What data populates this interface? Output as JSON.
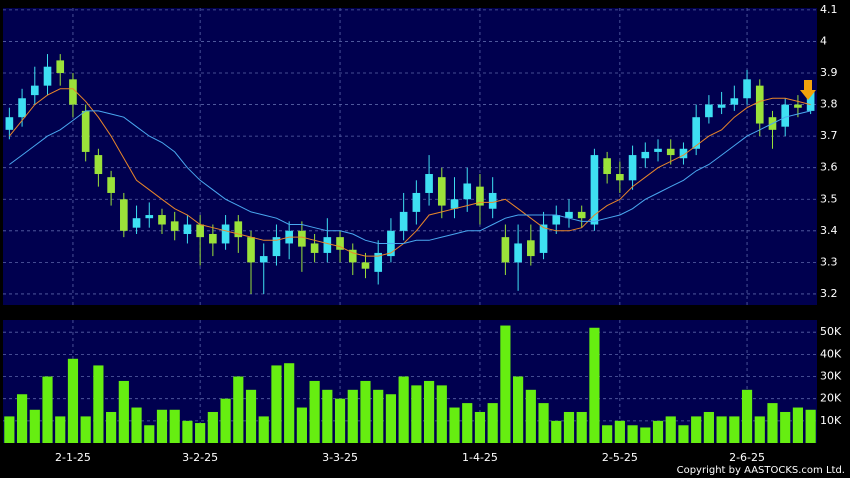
{
  "chart_data": [
    {
      "type": "candlestick",
      "up_color": "#3ee0f2",
      "down_color": "#9be23a",
      "ylim": [
        3.165,
        4.106
      ],
      "yticks": [
        3.2,
        3.3,
        3.4,
        3.5,
        3.6,
        3.7,
        3.8,
        3.9,
        4,
        4.1
      ],
      "grid": true,
      "open": [
        3.72,
        3.76,
        3.83,
        3.86,
        3.94,
        3.88,
        3.78,
        3.64,
        3.57,
        3.5,
        3.41,
        3.44,
        3.45,
        3.43,
        3.39,
        3.42,
        3.39,
        3.36,
        3.43,
        3.38,
        3.3,
        3.32,
        3.36,
        3.4,
        3.36,
        3.33,
        3.38,
        3.34,
        3.3,
        3.27,
        3.32,
        3.4,
        3.46,
        3.52,
        3.57,
        3.47,
        3.5,
        3.54,
        3.47,
        3.38,
        3.3,
        3.37,
        3.33,
        3.42,
        3.44,
        3.46,
        3.42,
        3.63,
        3.58,
        3.56,
        3.63,
        3.65,
        3.66,
        3.63,
        3.66,
        3.76,
        3.79,
        3.8,
        3.82,
        3.86,
        3.76,
        3.73,
        3.8,
        3.78
      ],
      "high": [
        3.79,
        3.85,
        3.92,
        3.96,
        3.96,
        3.9,
        3.8,
        3.66,
        3.59,
        3.52,
        3.48,
        3.49,
        3.47,
        3.46,
        3.45,
        3.45,
        3.42,
        3.45,
        3.45,
        3.4,
        3.36,
        3.42,
        3.43,
        3.43,
        3.39,
        3.44,
        3.4,
        3.36,
        3.33,
        3.37,
        3.44,
        3.52,
        3.56,
        3.64,
        3.6,
        3.57,
        3.6,
        3.58,
        3.57,
        3.42,
        3.42,
        3.42,
        3.46,
        3.48,
        3.5,
        3.48,
        3.66,
        3.65,
        3.62,
        3.67,
        3.68,
        3.69,
        3.69,
        3.68,
        3.8,
        3.83,
        3.84,
        3.86,
        3.91,
        3.88,
        3.78,
        3.82,
        3.83,
        3.87
      ],
      "low": [
        3.69,
        3.73,
        3.8,
        3.83,
        3.86,
        3.76,
        3.62,
        3.54,
        3.48,
        3.38,
        3.39,
        3.41,
        3.39,
        3.37,
        3.36,
        3.29,
        3.32,
        3.34,
        3.33,
        3.2,
        3.2,
        3.29,
        3.31,
        3.27,
        3.3,
        3.3,
        3.3,
        3.26,
        3.25,
        3.23,
        3.3,
        3.37,
        3.42,
        3.48,
        3.44,
        3.44,
        3.46,
        3.42,
        3.44,
        3.26,
        3.21,
        3.29,
        3.31,
        3.39,
        3.41,
        3.41,
        3.4,
        3.55,
        3.52,
        3.53,
        3.6,
        3.62,
        3.61,
        3.61,
        3.64,
        3.74,
        3.77,
        3.78,
        3.8,
        3.7,
        3.66,
        3.7,
        3.76,
        3.77
      ],
      "close": [
        3.76,
        3.82,
        3.86,
        3.92,
        3.9,
        3.8,
        3.65,
        3.58,
        3.52,
        3.4,
        3.44,
        3.45,
        3.42,
        3.4,
        3.42,
        3.38,
        3.36,
        3.42,
        3.38,
        3.3,
        3.32,
        3.38,
        3.4,
        3.35,
        3.33,
        3.38,
        3.34,
        3.3,
        3.28,
        3.33,
        3.4,
        3.46,
        3.52,
        3.58,
        3.48,
        3.5,
        3.55,
        3.48,
        3.52,
        3.3,
        3.36,
        3.32,
        3.42,
        3.45,
        3.46,
        3.44,
        3.64,
        3.58,
        3.56,
        3.64,
        3.65,
        3.66,
        3.64,
        3.66,
        3.76,
        3.8,
        3.8,
        3.82,
        3.88,
        3.74,
        3.72,
        3.8,
        3.79,
        3.84
      ],
      "lines": [
        {
          "color": "#e8862a",
          "values": [
            3.7,
            3.75,
            3.8,
            3.83,
            3.85,
            3.85,
            3.81,
            3.76,
            3.7,
            3.63,
            3.56,
            3.53,
            3.5,
            3.47,
            3.45,
            3.42,
            3.41,
            3.4,
            3.39,
            3.38,
            3.37,
            3.37,
            3.38,
            3.38,
            3.37,
            3.36,
            3.35,
            3.33,
            3.32,
            3.32,
            3.33,
            3.36,
            3.4,
            3.45,
            3.46,
            3.47,
            3.48,
            3.49,
            3.49,
            3.5,
            3.47,
            3.44,
            3.41,
            3.4,
            3.4,
            3.41,
            3.45,
            3.48,
            3.5,
            3.54,
            3.57,
            3.6,
            3.62,
            3.64,
            3.67,
            3.7,
            3.72,
            3.76,
            3.79,
            3.81,
            3.82,
            3.82,
            3.81,
            3.8
          ]
        },
        {
          "color": "#4aa8f0",
          "values": [
            3.61,
            3.64,
            3.67,
            3.7,
            3.72,
            3.75,
            3.78,
            3.78,
            3.77,
            3.76,
            3.73,
            3.7,
            3.68,
            3.65,
            3.6,
            3.56,
            3.53,
            3.5,
            3.48,
            3.46,
            3.45,
            3.44,
            3.42,
            3.42,
            3.41,
            3.4,
            3.4,
            3.39,
            3.37,
            3.36,
            3.36,
            3.36,
            3.37,
            3.37,
            3.38,
            3.39,
            3.4,
            3.4,
            3.42,
            3.44,
            3.45,
            3.45,
            3.45,
            3.45,
            3.44,
            3.43,
            3.43,
            3.44,
            3.45,
            3.47,
            3.5,
            3.52,
            3.54,
            3.56,
            3.59,
            3.61,
            3.64,
            3.67,
            3.7,
            3.72,
            3.74,
            3.76,
            3.77,
            3.78
          ]
        }
      ]
    },
    {
      "type": "bar",
      "color": "#66ee11",
      "ylim": [
        0,
        55500
      ],
      "yticks": [
        {
          "value": 10000,
          "label": "10K"
        },
        {
          "value": 20000,
          "label": "20K"
        },
        {
          "value": 30000,
          "label": "30K"
        },
        {
          "value": 40000,
          "label": "40K"
        },
        {
          "value": 50000,
          "label": "50K"
        }
      ],
      "grid": true,
      "categories": [
        null,
        null,
        null,
        null,
        null,
        "2-1-25",
        null,
        null,
        null,
        null,
        null,
        null,
        null,
        null,
        null,
        "3-2-25",
        null,
        null,
        null,
        null,
        null,
        null,
        null,
        null,
        null,
        null,
        "3-3-25",
        null,
        null,
        null,
        null,
        null,
        null,
        null,
        null,
        null,
        null,
        "1-4-25",
        null,
        null,
        null,
        null,
        null,
        null,
        null,
        null,
        null,
        null,
        "2-5-25",
        null,
        null,
        null,
        null,
        null,
        null,
        null,
        null,
        null,
        "2-6-25",
        null,
        null,
        null,
        null,
        null
      ],
      "values": [
        12000,
        22000,
        15000,
        30000,
        12000,
        38000,
        12000,
        35000,
        14000,
        28000,
        16000,
        8000,
        15000,
        15000,
        10000,
        9000,
        14000,
        20000,
        30000,
        24000,
        12000,
        35000,
        36000,
        16000,
        28000,
        24000,
        20000,
        24000,
        28000,
        24000,
        22000,
        30000,
        26000,
        28000,
        26000,
        16000,
        18000,
        14000,
        18000,
        53000,
        30000,
        24000,
        18000,
        10000,
        14000,
        14000,
        52000,
        8000,
        10000,
        8000,
        7000,
        10000,
        12000,
        8000,
        12000,
        14000,
        12000,
        12000,
        24000,
        12000,
        18000,
        14000,
        16000,
        15000
      ]
    }
  ],
  "copyright": "Copyright by AASTOCKS.com Ltd."
}
